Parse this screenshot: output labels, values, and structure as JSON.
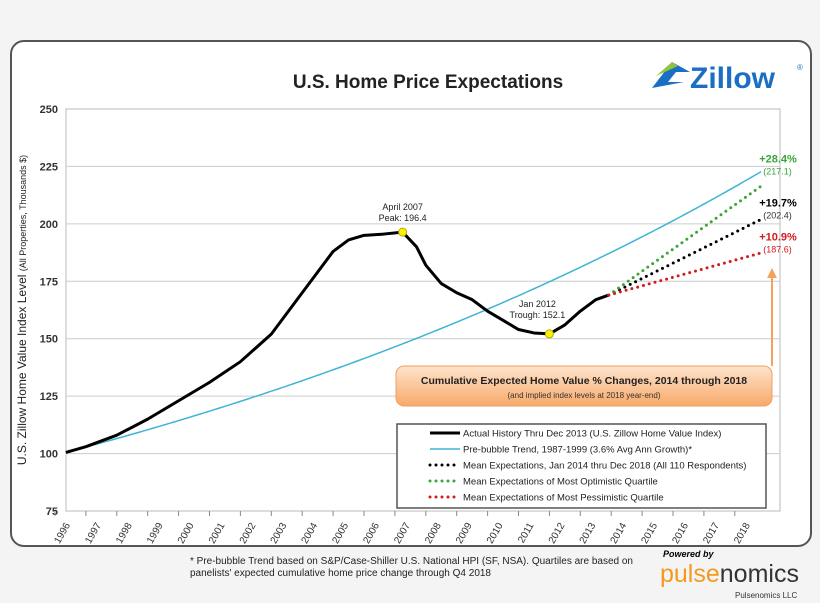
{
  "logo": {
    "text": "Zillow",
    "sup": "®"
  },
  "footer": {
    "note_line1": "* Pre-bubble Trend based on S&P/Case-Shiller U.S. National HPI (SF, NSA).  Quartiles are based on panelists' expected",
    "note_line2": "cumulative home price change through Q4 2018",
    "powered_by": "Powered by",
    "brand_a": "pulse",
    "brand_b": "nomics",
    "company": "Pulsenomics LLC"
  },
  "chart_data": {
    "type": "line",
    "title": "U.S. Home Price Expectations",
    "ylabel": "U.S. Zillow Home Value Index Level",
    "ylabel_sub": "(All Properties, Thousands $)",
    "ylim": [
      75,
      250
    ],
    "yticks": [
      75,
      100,
      125,
      150,
      175,
      200,
      225,
      250
    ],
    "xticks": [
      "1996",
      "1997",
      "1998",
      "1999",
      "2000",
      "2001",
      "2002",
      "2003",
      "2004",
      "2005",
      "2006",
      "2007",
      "2008",
      "2009",
      "2010",
      "2011",
      "2012",
      "2013",
      "2014",
      "2015",
      "2016",
      "2017",
      "2018"
    ],
    "grid": true,
    "colors": {
      "actual": "#000000",
      "trend": "#3fb4d6",
      "mean": "#000000",
      "optimistic": "#3aa53a",
      "pessimistic": "#d01c1c"
    },
    "series": [
      {
        "name": "Actual History Thru Dec 2013 (U.S. Zillow Home Value Index)",
        "key": "actual",
        "x": [
          1996.35,
          1997,
          1998,
          1999,
          2000,
          2001,
          2002,
          2003,
          2004,
          2005,
          2005.5,
          2006,
          2006.6,
          2007.25,
          2007.7,
          2008,
          2008.5,
          2009,
          2009.5,
          2010,
          2010.5,
          2011,
          2011.5,
          2012,
          2012.5,
          2013,
          2013.5,
          2013.92
        ],
        "y": [
          100.5,
          103,
          108,
          115,
          123,
          131,
          140,
          152,
          170,
          188,
          193,
          195,
          195.5,
          196.4,
          190,
          182,
          174,
          170,
          167,
          162,
          158,
          154,
          152.5,
          152.1,
          156,
          162,
          167,
          169
        ]
      },
      {
        "name": "Pre-bubble Trend, 1987-1999 (3.6% Avg Ann Growth)*",
        "key": "trend",
        "growth": 0.036,
        "start": [
          1996.35,
          100.5
        ],
        "end_x": 2018.92
      },
      {
        "name": "Mean Expectations, Jan 2014 thru Dec 2018  (All 110 Respondents)",
        "key": "mean",
        "x": [
          2013.92,
          2018.92
        ],
        "y": [
          169,
          202.4
        ],
        "end_pct": "+19.7%",
        "end_val": "(202.4)"
      },
      {
        "name": "Mean Expectations of Most Optimistic Quartile",
        "key": "optimistic",
        "x": [
          2013.92,
          2018.92
        ],
        "y": [
          169,
          217.1
        ],
        "end_pct": "+28.4%",
        "end_val": "(217.1)"
      },
      {
        "name": "Mean Expectations of Most Pessimistic Quartile",
        "key": "pessimistic",
        "x": [
          2013.92,
          2018.92
        ],
        "y": [
          169,
          187.6
        ],
        "end_pct": "+10.9%",
        "end_val": "(187.6)"
      }
    ],
    "annotations": [
      {
        "line1": "April 2007",
        "line2": "Peak: 196.4",
        "x": 2007.25,
        "y": 196.4
      },
      {
        "line1": "Jan 2012",
        "line2": "Trough: 152.1",
        "x": 2012.0,
        "y": 152.1
      }
    ],
    "callout": {
      "title": "Cumulative Expected Home Value % Changes, 2014 through 2018",
      "subtitle": "(and implied  index levels at 2018 year-end)"
    },
    "legend_placement": "bottom-right"
  }
}
